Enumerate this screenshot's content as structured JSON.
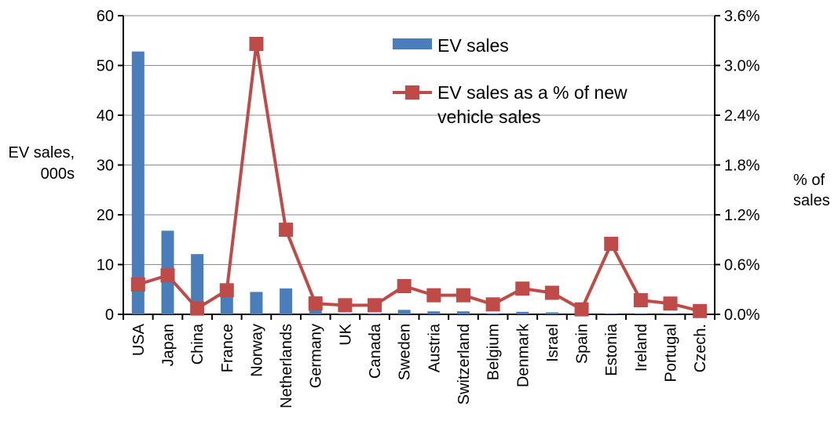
{
  "chart_data": {
    "type": "bar_line",
    "y_label": [
      "EV sales,",
      "000s"
    ],
    "y2_label": [
      "% of",
      "sales"
    ],
    "categories": [
      "USA",
      "Japan",
      "China",
      "France",
      "Norway",
      "Netherlands",
      "Germany",
      "UK",
      "Canada",
      "Sweden",
      "Austria",
      "Switzerland",
      "Belgium",
      "Denmark",
      "Israel",
      "Spain",
      "Estonia",
      "Ireland",
      "Portugal",
      "Czech."
    ],
    "series": [
      {
        "name": "EV sales",
        "color": "#4a7ebb",
        "type": "bar",
        "values": [
          52.8,
          16.8,
          12.1,
          5.6,
          4.5,
          5.2,
          3.6,
          0.2,
          0.2,
          0.9,
          0.6,
          0.6,
          0.2,
          0.5,
          0.4,
          0.2,
          0.1,
          0.1,
          0.1,
          0.05
        ]
      },
      {
        "name": "EV sales as a % of new vehicle sales",
        "color": "#be4b48",
        "type": "line",
        "axis": "y2",
        "values": [
          0.36,
          0.47,
          0.07,
          0.29,
          3.26,
          1.02,
          0.13,
          0.11,
          0.11,
          0.34,
          0.23,
          0.23,
          0.12,
          0.31,
          0.26,
          0.06,
          0.85,
          0.17,
          0.13,
          0.04
        ]
      }
    ],
    "ylim": [
      0,
      60
    ],
    "yticks": [
      0,
      10,
      20,
      30,
      40,
      50,
      60
    ],
    "y2lim": [
      0,
      3.6
    ],
    "y2ticks": [
      {
        "value": 0,
        "label": "0.0%"
      },
      {
        "value": 0.6,
        "label": "0.6%"
      },
      {
        "value": 1.2,
        "label": "1.2%"
      },
      {
        "value": 1.8,
        "label": "1.8%"
      },
      {
        "value": 2.4,
        "label": "2.4%"
      },
      {
        "value": 3.0,
        "label": "3.0%"
      },
      {
        "value": 3.6,
        "label": "3.6%"
      }
    ],
    "grid": true
  }
}
